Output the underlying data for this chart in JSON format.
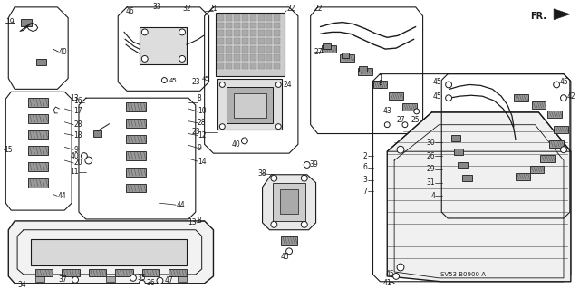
{
  "bg_color": "#ffffff",
  "line_color": "#1a1a1a",
  "fig_width": 6.4,
  "fig_height": 3.19,
  "dpi": 100,
  "diagram_code": "SV53-B0900 A",
  "fr_label": "FR."
}
